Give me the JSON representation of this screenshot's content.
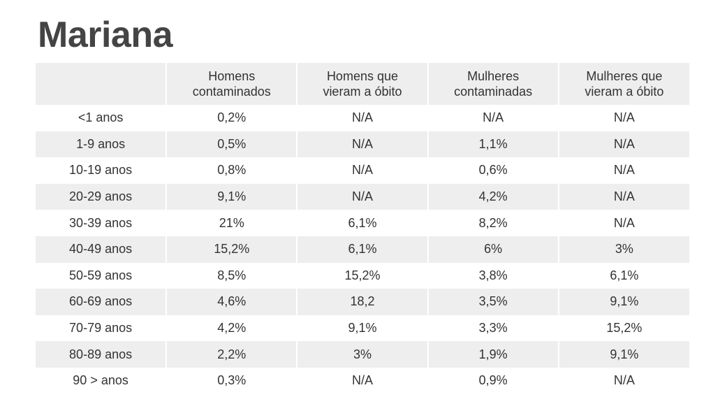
{
  "title": "Mariana",
  "chart_data": {
    "type": "table",
    "title": "Mariana",
    "columns": [
      "",
      "Homens\ncontaminados",
      "Homens que\nvieram a óbito",
      "Mulheres\ncontaminadas",
      "Mulheres que\nvieram a óbito"
    ],
    "rows": [
      [
        "<1 anos",
        "0,2%",
        "N/A",
        "N/A",
        "N/A"
      ],
      [
        "1-9 anos",
        "0,5%",
        "N/A",
        "1,1%",
        "N/A"
      ],
      [
        "10-19 anos",
        "0,8%",
        "N/A",
        "0,6%",
        "N/A"
      ],
      [
        "20-29 anos",
        "9,1%",
        "N/A",
        "4,2%",
        "N/A"
      ],
      [
        "30-39 anos",
        "21%",
        "6,1%",
        "8,2%",
        "N/A"
      ],
      [
        "40-49 anos",
        "15,2%",
        "6,1%",
        "6%",
        "3%"
      ],
      [
        "50-59 anos",
        "8,5%",
        "15,2%",
        "3,8%",
        "6,1%"
      ],
      [
        "60-69 anos",
        "4,6%",
        "18,2",
        "3,5%",
        "9,1%"
      ],
      [
        "70-79 anos",
        "4,2%",
        "9,1%",
        "3,3%",
        "15,2%"
      ],
      [
        "80-89 anos",
        "2,2%",
        "3%",
        "1,9%",
        "9,1%"
      ],
      [
        "90 > anos",
        "0,3%",
        "N/A",
        "0,9%",
        "N/A"
      ]
    ]
  }
}
